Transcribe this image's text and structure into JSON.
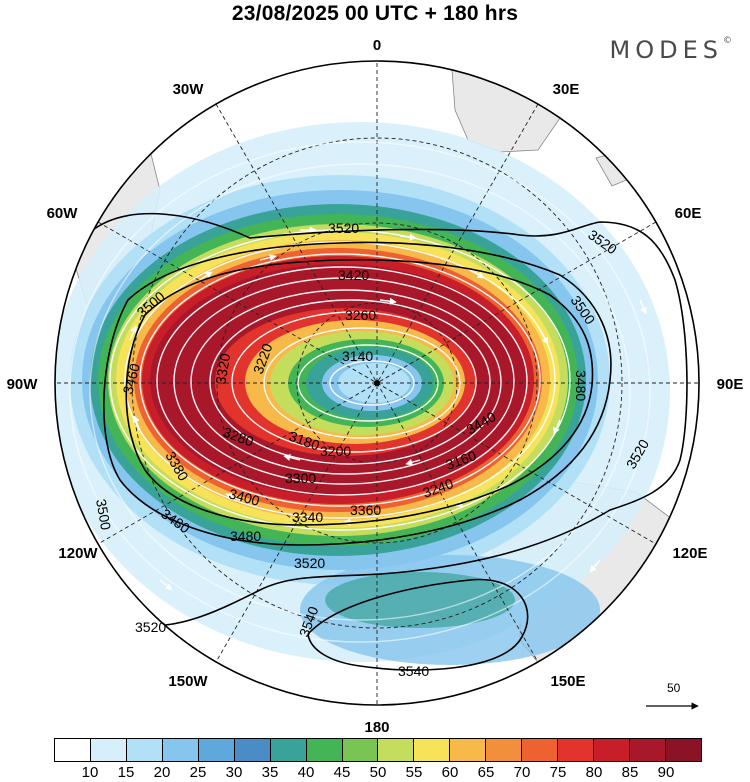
{
  "title": "23/08/2025  00 UTC  + 180 hrs",
  "brand": "MODES",
  "brand_mark": "©",
  "longitude_labels": {
    "top": "0",
    "bottom": "180",
    "left": "90W",
    "right": "90E",
    "upper_left_30": "30W",
    "upper_right_30": "30E",
    "upper_left_60": "60W",
    "upper_right_60": "60E",
    "lower_left_120": "120W",
    "lower_right_120": "120E",
    "lower_left_150": "150W",
    "lower_right_150": "150E"
  },
  "contour_labels": [
    "3520",
    "3520",
    "3520",
    "3520",
    "3500",
    "3500",
    "3500",
    "3480",
    "3480",
    "3480",
    "3460",
    "3440",
    "3420",
    "3400",
    "3380",
    "3360",
    "3340",
    "3320",
    "3300",
    "3280",
    "3260",
    "3240",
    "3220",
    "3200",
    "3180",
    "3160",
    "3140",
    "3540",
    "3540",
    "3520"
  ],
  "vector_reference": "50",
  "colorbar": {
    "colors": [
      "#ffffff",
      "#d6effb",
      "#b2e0f7",
      "#86c6ee",
      "#5fa8dc",
      "#4a8cc6",
      "#3aa399",
      "#44b556",
      "#7ac453",
      "#c4dd5d",
      "#f7e35a",
      "#f6b94a",
      "#f28f3d",
      "#ee6130",
      "#e2342c",
      "#c81e2a",
      "#a9172a",
      "#8a1426"
    ],
    "ticks": [
      "10",
      "15",
      "20",
      "25",
      "30",
      "35",
      "40",
      "45",
      "50",
      "55",
      "60",
      "65",
      "70",
      "75",
      "80",
      "85",
      "90"
    ]
  }
}
